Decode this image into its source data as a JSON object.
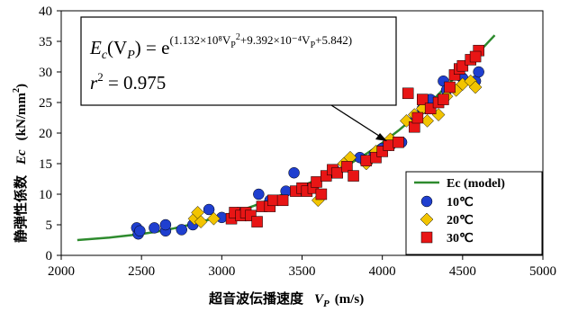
{
  "chart_data": {
    "type": "scatter",
    "xlabel_jp": "超音波伝播速度",
    "xlabel_sym": "V",
    "xlabel_sub": "P",
    "xlabel_unit": "(m/s)",
    "ylabel_jp": "静弾性係数",
    "ylabel_sym": "Ec",
    "ylabel_unit": "(kN/mm",
    "ylabel_exp": "2",
    "ylabel_close": ")",
    "xlim": [
      2000,
      5000
    ],
    "ylim": [
      0,
      40
    ],
    "xticks": [
      2000,
      2500,
      3000,
      3500,
      4000,
      4500,
      5000
    ],
    "yticks": [
      0,
      5,
      10,
      15,
      20,
      25,
      30,
      35,
      40
    ],
    "grid": false,
    "legend_position": "bottom-right",
    "annotation": {
      "equation_lhs": "E",
      "equation_lhs_sub": "c",
      "equation_arg": "(V",
      "equation_arg_sub": "P",
      "equation_arg_close": ") = e",
      "equation_exponent": "(1.132×10⁸V",
      "equation_exponent_sub": "P",
      "equation_exponent_pow": "2",
      "equation_exponent_rest": "+9.392×10⁻⁴V",
      "equation_exponent_sub2": "P",
      "equation_exponent_end": "+5.842)",
      "r2_label": "r",
      "r2_exp": "2",
      "r2_value": " = 0.975"
    },
    "model": {
      "name": "Ec (model)",
      "color": "#2e8b2e",
      "x": [
        2100,
        2200,
        2300,
        2400,
        2500,
        2600,
        2700,
        2800,
        2900,
        3000,
        3100,
        3200,
        3300,
        3400,
        3500,
        3600,
        3700,
        3800,
        3900,
        4000,
        4100,
        4200,
        4300,
        4400,
        4500,
        4600,
        4700
      ],
      "y": [
        2.5,
        2.7,
        2.9,
        3.2,
        3.5,
        3.9,
        4.4,
        5.0,
        5.7,
        6.4,
        7.2,
        8.1,
        9.1,
        10.2,
        11.3,
        12.5,
        13.7,
        15.0,
        16.6,
        18.4,
        20.4,
        22.6,
        25.0,
        27.7,
        30.4,
        33.2,
        36.0
      ]
    },
    "series": [
      {
        "name": "10℃",
        "marker": "circle",
        "color": "#1f3fcf",
        "points": [
          [
            2470,
            4.5
          ],
          [
            2480,
            3.5
          ],
          [
            2490,
            4.0
          ],
          [
            2580,
            4.5
          ],
          [
            2650,
            4.0
          ],
          [
            2650,
            5.0
          ],
          [
            2750,
            4.2
          ],
          [
            2820,
            5.0
          ],
          [
            2920,
            7.5
          ],
          [
            3000,
            6.2
          ],
          [
            3100,
            7.0
          ],
          [
            3230,
            10.0
          ],
          [
            3300,
            9.0
          ],
          [
            3400,
            10.5
          ],
          [
            3450,
            13.5
          ],
          [
            3550,
            11.0
          ],
          [
            3700,
            14.0
          ],
          [
            3860,
            16.0
          ],
          [
            3950,
            16.5
          ],
          [
            4000,
            17.5
          ],
          [
            4050,
            18.0
          ],
          [
            4120,
            18.5
          ],
          [
            4200,
            22.0
          ],
          [
            4250,
            24.0
          ],
          [
            4300,
            25.5
          ],
          [
            4380,
            28.5
          ],
          [
            4400,
            27.0
          ],
          [
            4500,
            29.0
          ],
          [
            4580,
            28.5
          ],
          [
            4600,
            30.0
          ]
        ]
      },
      {
        "name": "20℃",
        "marker": "diamond",
        "color": "#f2c400",
        "points": [
          [
            2830,
            6.0
          ],
          [
            2850,
            7.0
          ],
          [
            2870,
            5.5
          ],
          [
            2950,
            6.0
          ],
          [
            3600,
            9.0
          ],
          [
            3760,
            15.0
          ],
          [
            3800,
            16.0
          ],
          [
            3900,
            15.0
          ],
          [
            3960,
            17.0
          ],
          [
            4050,
            19.0
          ],
          [
            4150,
            22.0
          ],
          [
            4200,
            23.0
          ],
          [
            4250,
            24.0
          ],
          [
            4280,
            22.0
          ],
          [
            4350,
            23.0
          ],
          [
            4400,
            26.0
          ],
          [
            4460,
            27.0
          ],
          [
            4500,
            28.0
          ],
          [
            4550,
            28.5
          ],
          [
            4580,
            27.5
          ]
        ]
      },
      {
        "name": "30℃",
        "marker": "square",
        "color": "#e81515",
        "points": [
          [
            3060,
            6.0
          ],
          [
            3080,
            7.0
          ],
          [
            3120,
            6.5
          ],
          [
            3150,
            7.0
          ],
          [
            3180,
            6.5
          ],
          [
            3220,
            5.5
          ],
          [
            3250,
            8.0
          ],
          [
            3300,
            8.0
          ],
          [
            3320,
            9.0
          ],
          [
            3380,
            9.0
          ],
          [
            3460,
            10.5
          ],
          [
            3500,
            11.0
          ],
          [
            3530,
            10.5
          ],
          [
            3570,
            11.0
          ],
          [
            3590,
            12.0
          ],
          [
            3620,
            10.0
          ],
          [
            3650,
            13.0
          ],
          [
            3690,
            14.0
          ],
          [
            3720,
            13.5
          ],
          [
            3780,
            14.5
          ],
          [
            3820,
            13.0
          ],
          [
            3900,
            15.5
          ],
          [
            3960,
            16.0
          ],
          [
            4000,
            17.0
          ],
          [
            4040,
            18.0
          ],
          [
            4100,
            18.5
          ],
          [
            4160,
            26.5
          ],
          [
            4200,
            21.0
          ],
          [
            4220,
            22.5
          ],
          [
            4250,
            25.5
          ],
          [
            4300,
            24.0
          ],
          [
            4350,
            25.0
          ],
          [
            4380,
            25.5
          ],
          [
            4420,
            27.5
          ],
          [
            4450,
            29.5
          ],
          [
            4480,
            30.5
          ],
          [
            4500,
            31.0
          ],
          [
            4550,
            32.0
          ],
          [
            4600,
            33.5
          ],
          [
            4580,
            32.5
          ]
        ]
      }
    ]
  }
}
